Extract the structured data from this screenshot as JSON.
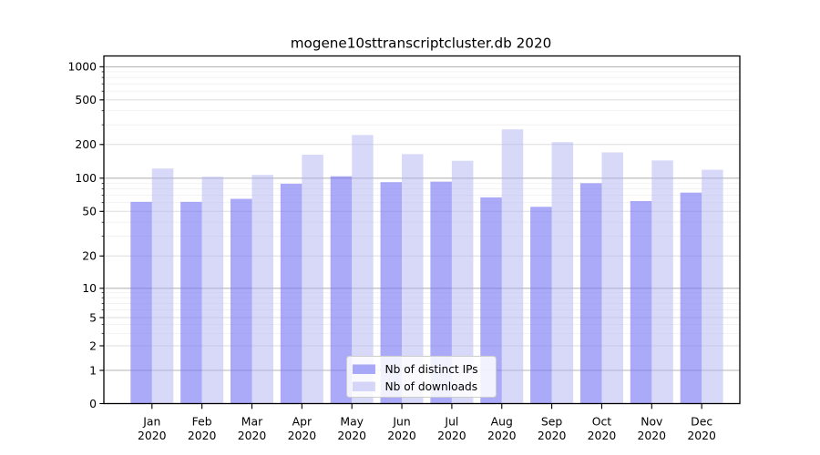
{
  "chart_data": {
    "type": "bar",
    "title": "mogene10sttranscriptcluster.db 2020",
    "categories": [
      "Jan",
      "Feb",
      "Mar",
      "Apr",
      "May",
      "Jun",
      "Jul",
      "Aug",
      "Sep",
      "Oct",
      "Nov",
      "Dec"
    ],
    "x_tick_second_line": "2020",
    "series": [
      {
        "name": "Nb of distinct IPs",
        "color": "#7676f4",
        "alpha": 0.62,
        "values": [
          61,
          61,
          65,
          89,
          104,
          92,
          93,
          67,
          55,
          90,
          62,
          74
        ]
      },
      {
        "name": "Nb of downloads",
        "color": "#b1b1f1",
        "alpha": 0.5,
        "values": [
          122,
          103,
          107,
          162,
          243,
          164,
          143,
          273,
          210,
          170,
          144,
          119
        ]
      }
    ],
    "xlabel": "",
    "ylabel": "",
    "y_axis": {
      "scale": "log-like (log10(1+y))",
      "ticks": [
        1000,
        500,
        200,
        100,
        50,
        20,
        10,
        5,
        2,
        1,
        0
      ],
      "range": [
        0,
        1250
      ]
    },
    "grid": {
      "orientation": "horizontal",
      "decade_color": "#b5b5b5",
      "mid_color": "#dedede",
      "minor_color": "#f1f1f1"
    },
    "legend": {
      "position": "inside-bottom-center",
      "entries": [
        "Nb of distinct IPs",
        "Nb of downloads"
      ]
    },
    "frame_color": "#000000",
    "background_color": "#ffffff"
  }
}
